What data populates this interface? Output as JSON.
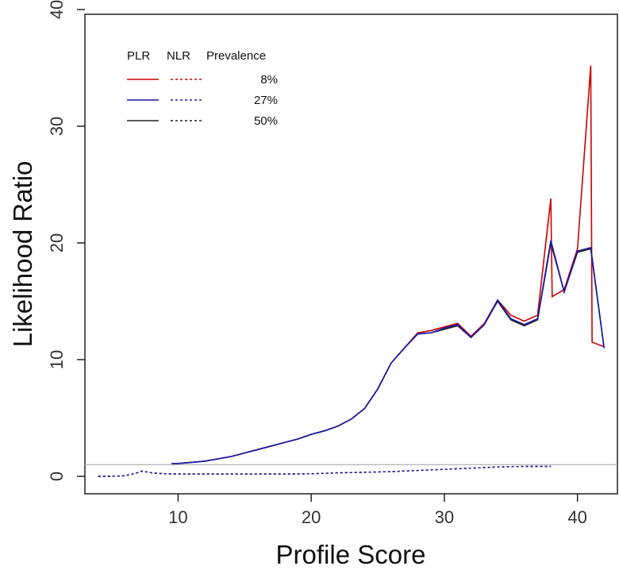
{
  "chart_data": {
    "type": "line",
    "title": "",
    "xlabel": "Profile Score",
    "ylabel": "Likelihood Ratio",
    "xlim": [
      3,
      43
    ],
    "ylim": [
      0,
      40
    ],
    "x_ticks": [
      10,
      20,
      30,
      40
    ],
    "y_ticks": [
      0,
      10,
      20,
      30,
      40
    ],
    "grid": false,
    "legend_placement": "top-left",
    "legend_headers": {
      "plr": "PLR",
      "nlr": "NLR",
      "prevalence": "Prevalence"
    },
    "reference_line": {
      "y": 1,
      "color": "#aaaaaa"
    },
    "series": [
      {
        "name": "8%",
        "color": "#cc0000",
        "plr": {
          "x": [
            9.5,
            10,
            11,
            12,
            13,
            14,
            15,
            16,
            17,
            18,
            19,
            20,
            21,
            22,
            23,
            24,
            25,
            26,
            27,
            28,
            29,
            30,
            31,
            32,
            33,
            34,
            35,
            36,
            37,
            38,
            38.1,
            39,
            40,
            41,
            41.1,
            42
          ],
          "y": [
            1.1,
            1.1,
            1.2,
            1.3,
            1.5,
            1.7,
            2.0,
            2.3,
            2.6,
            2.9,
            3.2,
            3.6,
            3.9,
            4.3,
            4.9,
            5.8,
            7.5,
            9.7,
            11.0,
            12.3,
            12.5,
            12.8,
            13.1,
            12.0,
            13.1,
            15.1,
            13.8,
            13.3,
            13.8,
            23.8,
            15.4,
            16.0,
            19.5,
            35.2,
            11.5,
            11.1
          ]
        },
        "nlr": {
          "x": [
            4,
            5,
            6,
            6.8,
            7.3,
            8,
            9,
            10,
            12,
            14,
            16,
            18,
            20,
            22,
            24,
            26,
            28,
            30,
            32,
            34,
            36,
            38
          ],
          "y": [
            0.0,
            0.0,
            0.05,
            0.25,
            0.45,
            0.3,
            0.22,
            0.2,
            0.2,
            0.2,
            0.2,
            0.2,
            0.22,
            0.3,
            0.35,
            0.4,
            0.5,
            0.6,
            0.7,
            0.8,
            0.85,
            0.85
          ]
        }
      },
      {
        "name": "27%",
        "color": "#1a1aaa",
        "plr": {
          "x": [
            9.5,
            10,
            11,
            12,
            13,
            14,
            15,
            16,
            17,
            18,
            19,
            20,
            21,
            22,
            23,
            24,
            25,
            26,
            27,
            28,
            29,
            30,
            31,
            32,
            33,
            34,
            35,
            36,
            37,
            38,
            39,
            40,
            41,
            42
          ],
          "y": [
            1.1,
            1.1,
            1.2,
            1.3,
            1.5,
            1.7,
            2.0,
            2.3,
            2.6,
            2.9,
            3.2,
            3.6,
            3.9,
            4.3,
            4.9,
            5.8,
            7.5,
            9.7,
            11.0,
            12.2,
            12.3,
            12.7,
            13.0,
            11.9,
            13.0,
            15.1,
            13.5,
            13.0,
            13.5,
            20.2,
            15.8,
            19.3,
            19.6,
            11.0
          ]
        },
        "nlr": {
          "x": [
            4,
            5,
            6,
            6.8,
            7.3,
            8,
            9,
            10,
            12,
            14,
            16,
            18,
            20,
            22,
            24,
            26,
            28,
            30,
            32,
            34,
            36,
            38
          ],
          "y": [
            0.0,
            0.0,
            0.05,
            0.25,
            0.45,
            0.3,
            0.22,
            0.2,
            0.2,
            0.2,
            0.2,
            0.2,
            0.22,
            0.3,
            0.35,
            0.4,
            0.5,
            0.6,
            0.7,
            0.8,
            0.85,
            0.85
          ]
        }
      },
      {
        "name": "50%",
        "color": "#222222",
        "plr": {
          "x": [
            9.5,
            10,
            11,
            12,
            13,
            14,
            15,
            16,
            17,
            18,
            19,
            20,
            21,
            22,
            23,
            24,
            25,
            26,
            27,
            28,
            29,
            30,
            31,
            32,
            33,
            34,
            35,
            36,
            37,
            38,
            39,
            40,
            41,
            42
          ],
          "y": [
            1.1,
            1.1,
            1.2,
            1.3,
            1.5,
            1.7,
            2.0,
            2.3,
            2.6,
            2.9,
            3.2,
            3.6,
            3.9,
            4.3,
            4.9,
            5.8,
            7.5,
            9.7,
            11.0,
            12.2,
            12.3,
            12.6,
            12.9,
            11.9,
            13.0,
            15.0,
            13.4,
            12.9,
            13.4,
            20.0,
            15.8,
            19.2,
            19.5,
            11.0
          ]
        },
        "nlr": {
          "x": [
            4,
            5,
            6,
            6.8,
            7.3,
            8,
            9,
            10,
            12,
            14,
            16,
            18,
            20,
            22,
            24,
            26,
            28,
            30,
            32,
            34,
            36,
            38
          ],
          "y": [
            0.0,
            0.0,
            0.05,
            0.25,
            0.45,
            0.3,
            0.22,
            0.2,
            0.2,
            0.2,
            0.2,
            0.2,
            0.22,
            0.3,
            0.35,
            0.4,
            0.5,
            0.6,
            0.7,
            0.8,
            0.85,
            0.85
          ]
        }
      }
    ]
  }
}
